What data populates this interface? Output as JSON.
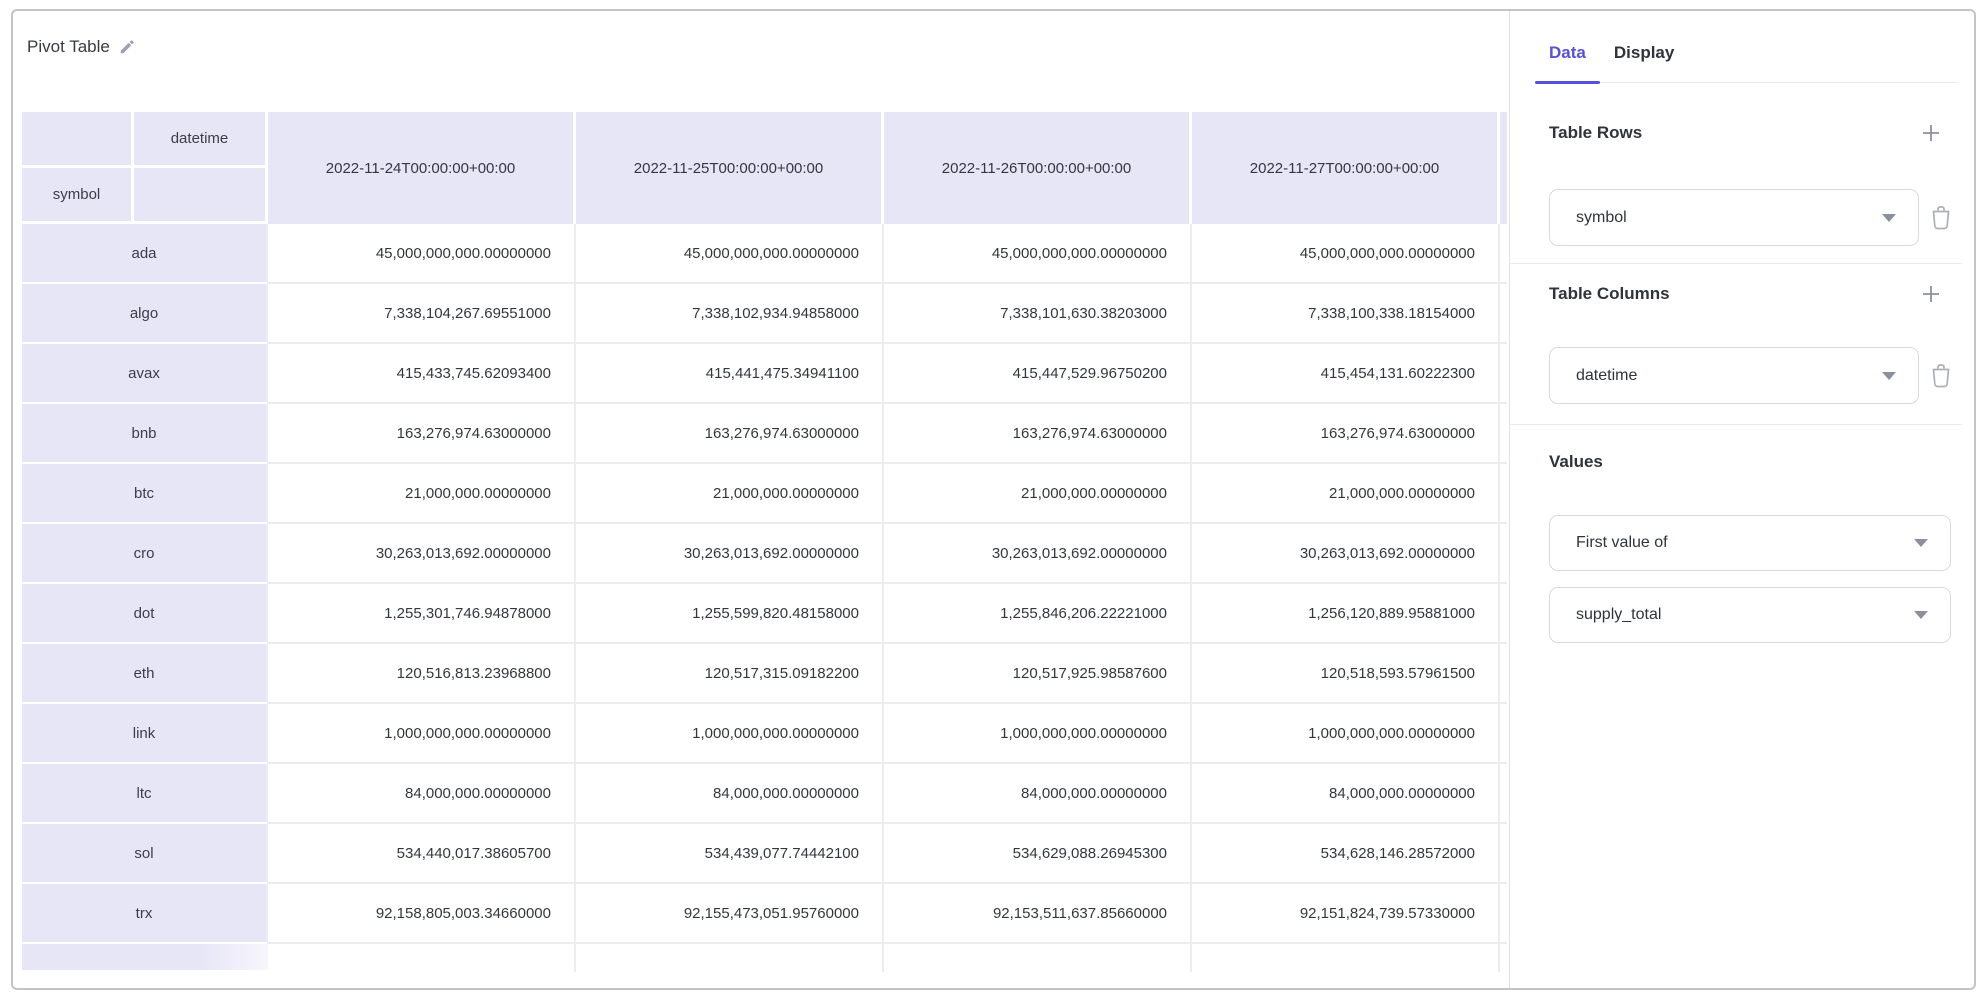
{
  "card": {
    "title": "Pivot Table"
  },
  "icons": {
    "edit": "pencil-icon",
    "add": "plus-icon",
    "remove": "trash-icon",
    "expand": "chevron-down-icon"
  },
  "colors": {
    "accent_purple": "#5750d9",
    "header_lavender": "#e7e6f7",
    "grid_line": "#edecf2",
    "text_dark": "#2e343b",
    "icon_gray": "#9aa0ac"
  },
  "pivot": {
    "row_dimension": "symbol",
    "col_dimension": "datetime",
    "columns": [
      "2022-11-24T00:00:00+00:00",
      "2022-11-25T00:00:00+00:00",
      "2022-11-26T00:00:00+00:00",
      "2022-11-27T00:00:00+00:00"
    ],
    "rows": [
      {
        "label": "ada",
        "values": [
          "45,000,000,000.00000000",
          "45,000,000,000.00000000",
          "45,000,000,000.00000000",
          "45,000,000,000.00000000"
        ]
      },
      {
        "label": "algo",
        "values": [
          "7,338,104,267.69551000",
          "7,338,102,934.94858000",
          "7,338,101,630.38203000",
          "7,338,100,338.18154000"
        ]
      },
      {
        "label": "avax",
        "values": [
          "415,433,745.62093400",
          "415,441,475.34941100",
          "415,447,529.96750200",
          "415,454,131.60222300"
        ]
      },
      {
        "label": "bnb",
        "values": [
          "163,276,974.63000000",
          "163,276,974.63000000",
          "163,276,974.63000000",
          "163,276,974.63000000"
        ]
      },
      {
        "label": "btc",
        "values": [
          "21,000,000.00000000",
          "21,000,000.00000000",
          "21,000,000.00000000",
          "21,000,000.00000000"
        ]
      },
      {
        "label": "cro",
        "values": [
          "30,263,013,692.00000000",
          "30,263,013,692.00000000",
          "30,263,013,692.00000000",
          "30,263,013,692.00000000"
        ]
      },
      {
        "label": "dot",
        "values": [
          "1,255,301,746.94878000",
          "1,255,599,820.48158000",
          "1,255,846,206.22221000",
          "1,256,120,889.95881000"
        ]
      },
      {
        "label": "eth",
        "values": [
          "120,516,813.23968800",
          "120,517,315.09182200",
          "120,517,925.98587600",
          "120,518,593.57961500"
        ]
      },
      {
        "label": "link",
        "values": [
          "1,000,000,000.00000000",
          "1,000,000,000.00000000",
          "1,000,000,000.00000000",
          "1,000,000,000.00000000"
        ]
      },
      {
        "label": "ltc",
        "values": [
          "84,000,000.00000000",
          "84,000,000.00000000",
          "84,000,000.00000000",
          "84,000,000.00000000"
        ]
      },
      {
        "label": "sol",
        "values": [
          "534,440,017.38605700",
          "534,439,077.74442100",
          "534,629,088.26945300",
          "534,628,146.28572000"
        ]
      },
      {
        "label": "trx",
        "values": [
          "92,158,805,003.34660000",
          "92,155,473,051.95760000",
          "92,153,511,637.85660000",
          "92,151,824,739.57330000"
        ]
      }
    ]
  },
  "sidebar": {
    "tabs": [
      {
        "label": "Data",
        "active": true
      },
      {
        "label": "Display",
        "active": false
      }
    ],
    "table_rows": {
      "title": "Table Rows",
      "field": "symbol"
    },
    "table_columns": {
      "title": "Table Columns",
      "field": "datetime"
    },
    "values": {
      "title": "Values",
      "aggregation": "First value of",
      "field": "supply_total"
    }
  }
}
